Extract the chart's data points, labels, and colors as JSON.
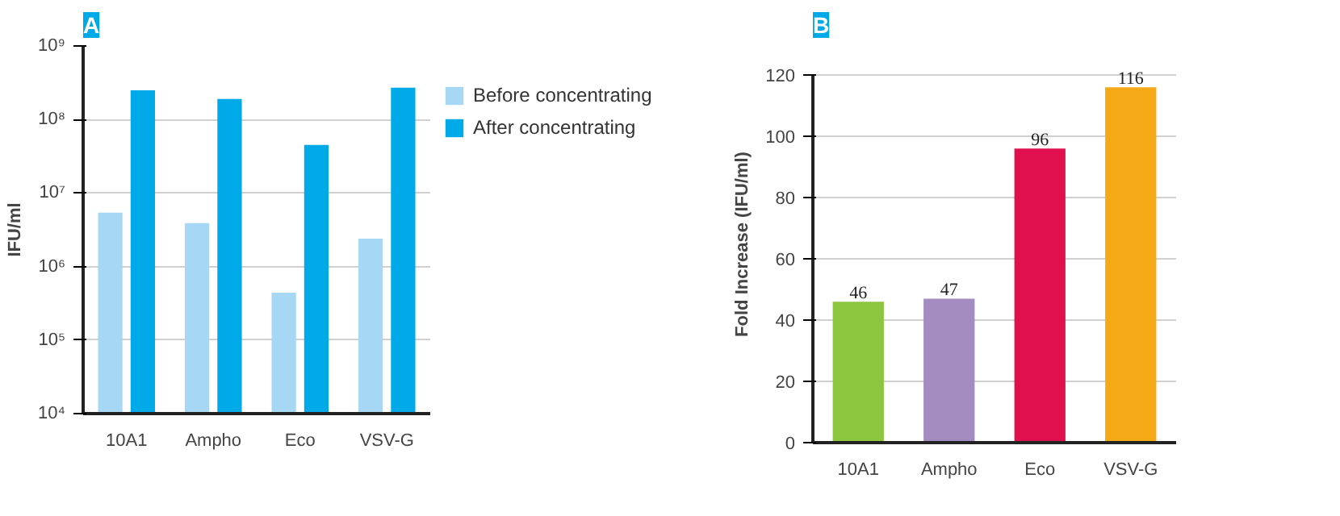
{
  "chart_data": [
    {
      "type": "bar",
      "title": "A",
      "ylabel": "IFU/ml",
      "categories": [
        "10A1",
        "Ampho",
        "Eco",
        "VSV-G"
      ],
      "log": true,
      "ylim": [
        10000,
        1000000000
      ],
      "yticks": [
        {
          "value": 10000,
          "label": "10⁴"
        },
        {
          "value": 100000,
          "label": "10⁵"
        },
        {
          "value": 1000000,
          "label": "10⁶"
        },
        {
          "value": 10000000,
          "label": "10⁷"
        },
        {
          "value": 100000000,
          "label": "10⁸"
        },
        {
          "value": 1000000000,
          "label": "10⁹"
        }
      ],
      "grid": "y",
      "legend": "top right",
      "series": [
        {
          "name": "Before concentrating",
          "color": "#a6d8f5",
          "values": [
            5400000,
            3900000,
            440000,
            2400000
          ]
        },
        {
          "name": "After concentrating",
          "color": "#00a9e8",
          "values": [
            250000000,
            190000000,
            45000000,
            270000000
          ]
        }
      ]
    },
    {
      "type": "bar",
      "title": "B",
      "ylabel": "Fold Increase (IFU/ml)",
      "categories": [
        "10A1",
        "Ampho",
        "Eco",
        "VSV-G"
      ],
      "ylim": [
        0,
        120
      ],
      "yticks": [
        0,
        20,
        40,
        60,
        80,
        100,
        120
      ],
      "grid": "y",
      "data_labels": true,
      "values": [
        46,
        47,
        96,
        116
      ],
      "colors": [
        "#8cc63f",
        "#a48bc0",
        "#e0104f",
        "#f4a916"
      ]
    }
  ]
}
